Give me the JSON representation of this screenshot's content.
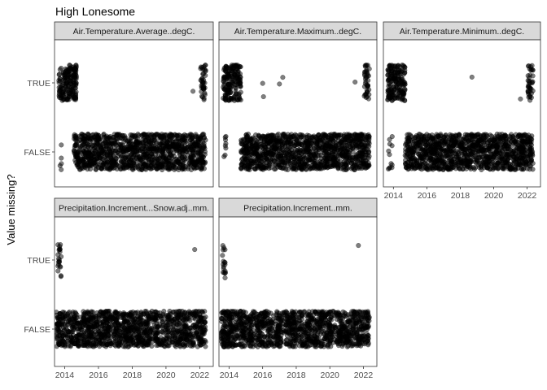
{
  "chart_data": {
    "type": "scatter",
    "title": "High Lonesome",
    "xlabel": "",
    "ylabel": "Value missing?",
    "y_categories": [
      "FALSE",
      "TRUE"
    ],
    "x_ticks": [
      2014,
      2016,
      2018,
      2020,
      2022
    ],
    "xlim": [
      2013.4,
      2022.8
    ],
    "grid": false,
    "legend": "none",
    "point_color": "#000000",
    "point_alpha": 0.5,
    "panels": [
      {
        "name": "Air.Temperature.Average..degC.",
        "false_clusters": [
          [
            2013.7,
            2013.85,
            5
          ],
          [
            2014.55,
            2022.35,
            1200
          ]
        ],
        "true_clusters": [
          [
            2013.65,
            2014.7,
            180
          ],
          [
            2022.05,
            2022.35,
            40
          ]
        ],
        "true_points": [
          2021.6
        ]
      },
      {
        "name": "Air.Temperature.Maximum..degC.",
        "false_clusters": [
          [
            2013.7,
            2013.85,
            8
          ],
          [
            2014.7,
            2022.35,
            1200
          ]
        ],
        "true_clusters": [
          [
            2013.65,
            2014.7,
            180
          ],
          [
            2022.05,
            2022.35,
            40
          ]
        ],
        "true_points": [
          2016.0,
          2016.05,
          2017.0,
          2017.2,
          2021.5
        ]
      },
      {
        "name": "Air.Temperature.Minimum..degC.",
        "false_clusters": [
          [
            2013.65,
            2013.95,
            12
          ],
          [
            2014.7,
            2022.35,
            1200
          ]
        ],
        "true_clusters": [
          [
            2013.65,
            2014.7,
            180
          ],
          [
            2022.05,
            2022.35,
            40
          ]
        ],
        "true_points": [
          2018.7,
          2021.6
        ]
      },
      {
        "name": "Precipitation.Increment...Snow.adj..mm.",
        "false_clusters": [
          [
            2013.5,
            2022.35,
            1300
          ]
        ],
        "true_clusters": [
          [
            2013.6,
            2013.8,
            22
          ]
        ],
        "true_points": [
          2021.7
        ]
      },
      {
        "name": "Precipitation.Increment..mm.",
        "false_clusters": [
          [
            2013.5,
            2022.35,
            1300
          ]
        ],
        "true_clusters": [
          [
            2013.6,
            2013.8,
            18
          ]
        ],
        "true_points": [
          2021.7
        ]
      }
    ]
  }
}
